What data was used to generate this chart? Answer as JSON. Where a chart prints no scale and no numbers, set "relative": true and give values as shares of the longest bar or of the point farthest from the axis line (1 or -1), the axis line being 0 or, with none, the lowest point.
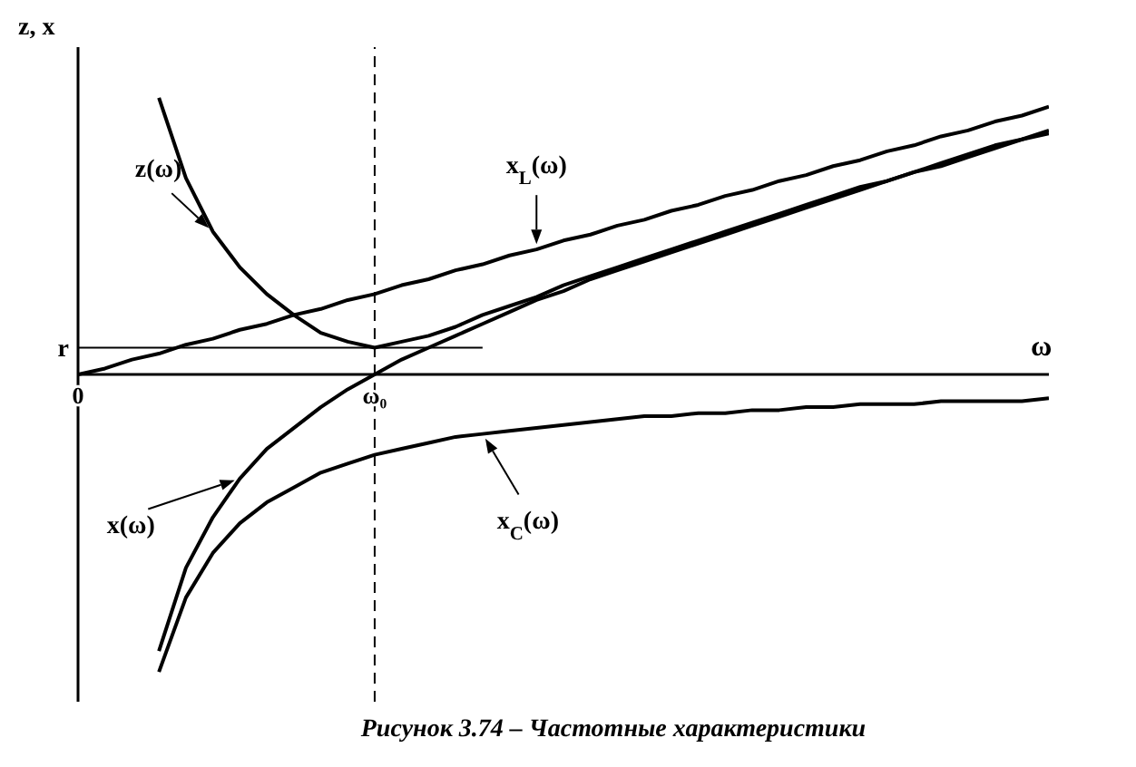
{
  "chart_data": {
    "type": "line",
    "title": "Рисунок 3.74 – Частотные характеристики",
    "xlabel": "ω",
    "ylabel": "z, x",
    "relative": true,
    "marker": "none",
    "line_style": "solid",
    "categories": [
      "0",
      null,
      null,
      null,
      null,
      null,
      null,
      null,
      null,
      null,
      null,
      "ω₀",
      null,
      null,
      null,
      null,
      null,
      null,
      null,
      null,
      null,
      null,
      null,
      null,
      null,
      null,
      null,
      null,
      null,
      null,
      null,
      null,
      null,
      null,
      null,
      null,
      null
    ],
    "series": [
      {
        "name": "x$_{L}$(ω)",
        "color": "#000000",
        "values": [
          0,
          0.02,
          0.05,
          0.07,
          0.1,
          0.12,
          0.15,
          0.17,
          0.2,
          0.22,
          0.25,
          0.27,
          0.3,
          0.32,
          0.35,
          0.37,
          0.4,
          0.42,
          0.45,
          0.47,
          0.5,
          0.52,
          0.55,
          0.57,
          0.6,
          0.62,
          0.65,
          0.67,
          0.7,
          0.72,
          0.75,
          0.77,
          0.8,
          0.82,
          0.85,
          0.87,
          0.9
        ]
      },
      {
        "name": "x$_{C}$(ω)",
        "color": "#000000",
        "values": [
          null,
          null,
          null,
          -1.0,
          -0.75,
          -0.6,
          -0.5,
          -0.43,
          -0.38,
          -0.33,
          -0.3,
          -0.27,
          -0.25,
          -0.23,
          -0.21,
          -0.2,
          -0.19,
          -0.18,
          -0.17,
          -0.16,
          -0.15,
          -0.14,
          -0.14,
          -0.13,
          -0.13,
          -0.12,
          -0.12,
          -0.11,
          -0.11,
          -0.1,
          -0.1,
          -0.1,
          -0.09,
          -0.09,
          -0.09,
          -0.09,
          -0.08
        ]
      },
      {
        "name": "x(ω)",
        "color": "#000000",
        "values": [
          null,
          null,
          null,
          -0.93,
          -0.65,
          -0.48,
          -0.35,
          -0.25,
          -0.18,
          -0.11,
          -0.05,
          0.0,
          0.05,
          0.09,
          0.13,
          0.17,
          0.21,
          0.25,
          0.28,
          0.32,
          0.35,
          0.38,
          0.41,
          0.44,
          0.47,
          0.5,
          0.53,
          0.56,
          0.59,
          0.62,
          0.65,
          0.68,
          0.7,
          0.73,
          0.76,
          0.79,
          0.81
        ]
      },
      {
        "name": "z(ω)",
        "color": "#000000",
        "values": [
          null,
          null,
          null,
          0.93,
          0.66,
          0.48,
          0.36,
          0.27,
          0.2,
          0.14,
          0.11,
          0.09,
          0.11,
          0.13,
          0.16,
          0.2,
          0.23,
          0.26,
          0.3,
          0.33,
          0.36,
          0.39,
          0.42,
          0.45,
          0.48,
          0.51,
          0.54,
          0.57,
          0.6,
          0.63,
          0.65,
          0.68,
          0.71,
          0.74,
          0.77,
          0.79,
          0.82
        ]
      }
    ],
    "ref_lines": [
      {
        "axis": "y",
        "value": 0.09,
        "label": "r"
      },
      {
        "axis": "x",
        "value": "ω₀",
        "line_style": "dashed"
      }
    ]
  }
}
